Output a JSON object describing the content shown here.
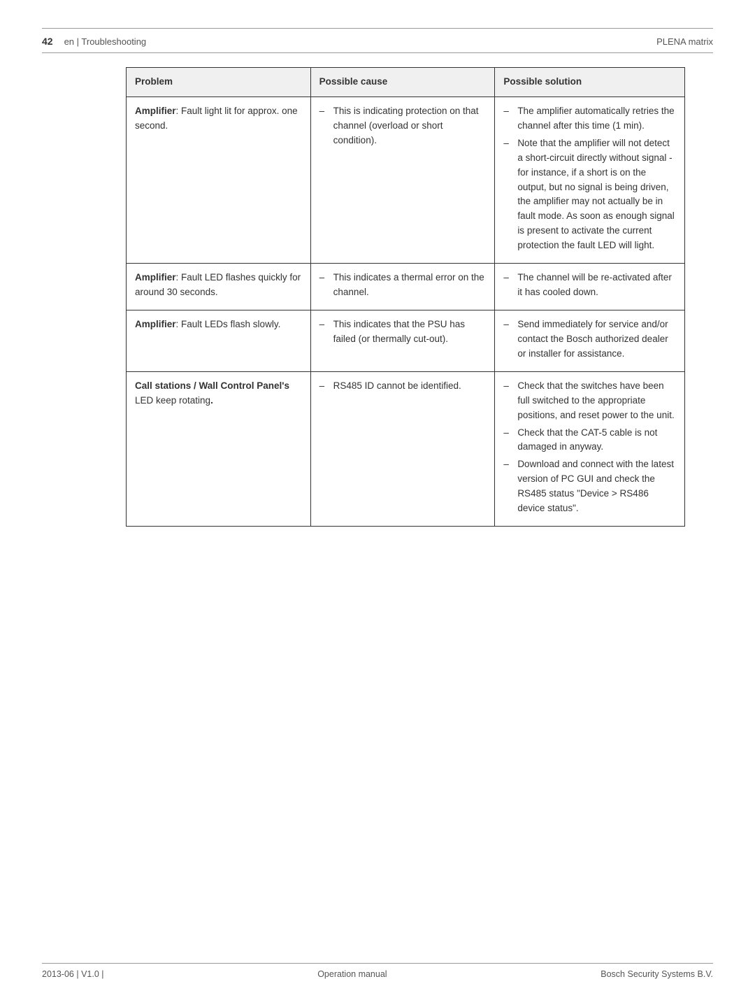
{
  "header": {
    "page_number": "42",
    "breadcrumb": "en | Troubleshooting",
    "product": "PLENA matrix"
  },
  "table": {
    "headers": {
      "problem": "Problem",
      "cause": "Possible cause",
      "solution": "Possible solution"
    },
    "rows": [
      {
        "problem_label": "Amplifier",
        "problem_rest": ": Fault light lit for approx. one second.",
        "causes": [
          "This is indicating protection on that channel (overload or short condition)."
        ],
        "solutions": [
          "The amplifier automatically retries the channel after this time (1 min).",
          "Note that the amplifier will not detect a short-circuit directly without signal - for instance, if a short is on the output, but no signal is being driven, the amplifier may not actually be in fault mode. As soon as enough signal is present to activate the current protection the fault LED will light."
        ]
      },
      {
        "problem_label": "Amplifier",
        "problem_rest": ": Fault LED flashes quickly for around 30 seconds.",
        "causes": [
          "This indicates a thermal error on the channel."
        ],
        "solutions": [
          "The channel will be re-activated after it has cooled down."
        ]
      },
      {
        "problem_label": "Amplifier",
        "problem_rest": ": Fault LEDs flash slowly.",
        "causes": [
          "This indicates that the PSU has failed (or thermally cut-out)."
        ],
        "solutions": [
          "Send immediately for service and/or contact the Bosch authorized dealer or installer for assistance."
        ]
      },
      {
        "problem_label": "Call stations / Wall Control Panel's",
        "problem_rest_prefix": " LED keep rotating",
        "problem_rest_suffix": ".",
        "causes": [
          "RS485 ID cannot be identified."
        ],
        "solutions": [
          "Check that the switches have been full switched to the appropriate positions, and reset power to the unit.",
          "Check that the CAT-5 cable is not damaged in anyway.",
          "Download and connect with the latest version of PC GUI and check the RS485 status \"Device > RS486 device status\"."
        ]
      }
    ]
  },
  "footer": {
    "left": "2013-06 | V1.0 |",
    "center": "Operation manual",
    "right": "Bosch Security Systems B.V."
  }
}
